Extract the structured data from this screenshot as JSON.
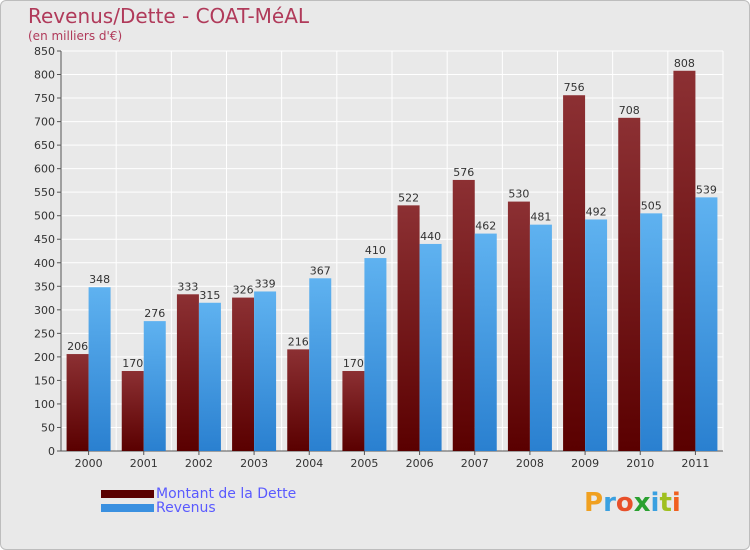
{
  "header": {
    "title": "Revenus/Dette - COAT-MéAL",
    "subtitle": "(en milliers d'€)"
  },
  "colors": {
    "dette": "#7a1a1f",
    "revenus": "#4aa3e8",
    "title": "#b03a5a",
    "legend_text": "#5a5aff"
  },
  "legend": [
    {
      "label": "Montant de la Dette",
      "color": "#5a0000"
    },
    {
      "label": "Revenus",
      "color": "#3a90e0"
    }
  ],
  "brand": {
    "letters": [
      "P",
      "r",
      "o",
      "x",
      "i",
      "t",
      "i"
    ],
    "colors": [
      "#f0a020",
      "#3aa0e0",
      "#e8502a",
      "#2aa030",
      "#3aa0e0",
      "#a0c020",
      "#f06020"
    ]
  },
  "chart_data": {
    "type": "bar",
    "categories": [
      "2000",
      "2001",
      "2002",
      "2003",
      "2004",
      "2005",
      "2006",
      "2007",
      "2008",
      "2009",
      "2010",
      "2011"
    ],
    "series": [
      {
        "name": "Montant de la Dette",
        "values": [
          206,
          170,
          333,
          326,
          216,
          170,
          522,
          576,
          530,
          756,
          708,
          808
        ]
      },
      {
        "name": "Revenus",
        "values": [
          348,
          276,
          315,
          339,
          367,
          410,
          440,
          462,
          481,
          492,
          505,
          539
        ]
      }
    ],
    "title": "Revenus/Dette - COAT-MéAL",
    "subtitle": "(en milliers d'€)",
    "xlabel": "",
    "ylabel": "",
    "ylim": [
      0,
      850
    ],
    "yticks": [
      0,
      50,
      100,
      150,
      200,
      250,
      300,
      350,
      400,
      450,
      500,
      550,
      600,
      650,
      700,
      750,
      800,
      850
    ],
    "grid": true
  }
}
